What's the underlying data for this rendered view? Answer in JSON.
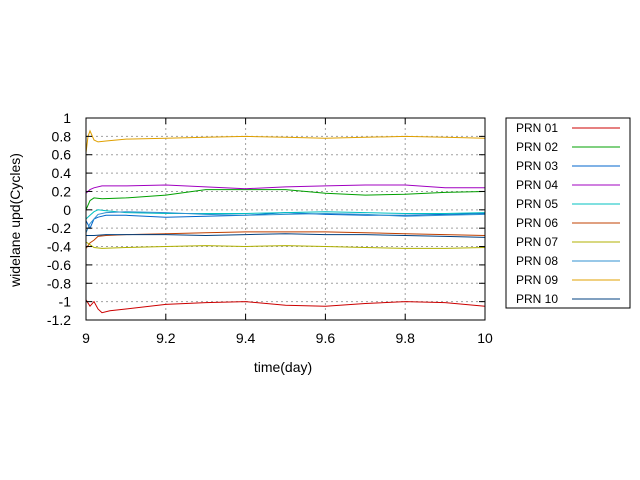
{
  "chart_data": {
    "type": "line",
    "title": "",
    "xlabel": "time(day)",
    "ylabel": "widelane upd(Cycles)",
    "xlim": [
      9,
      10
    ],
    "ylim": [
      -1.2,
      1
    ],
    "xticks": [
      {
        "value": 9,
        "label": "9"
      },
      {
        "value": 9.2,
        "label": "9.2"
      },
      {
        "value": 9.4,
        "label": "9.4"
      },
      {
        "value": 9.6,
        "label": "9.6"
      },
      {
        "value": 9.8,
        "label": "9.8"
      },
      {
        "value": 10,
        "label": "10"
      }
    ],
    "yticks": [
      {
        "value": 1,
        "label": "1"
      },
      {
        "value": 0.8,
        "label": "0.8"
      },
      {
        "value": 0.6,
        "label": "0.6"
      },
      {
        "value": 0.4,
        "label": "0.4"
      },
      {
        "value": 0.2,
        "label": "0.2"
      },
      {
        "value": 0,
        "label": "0"
      },
      {
        "value": -0.2,
        "label": "-0.2"
      },
      {
        "value": -0.4,
        "label": "-0.4"
      },
      {
        "value": -0.6,
        "label": "-0.6"
      },
      {
        "value": -0.8,
        "label": "-0.8"
      },
      {
        "value": -1,
        "label": "-1"
      },
      {
        "value": -1.2,
        "label": "-1.2"
      }
    ],
    "grid": true,
    "legend_position": "outside-right",
    "series": [
      {
        "name": "PRN 01",
        "color": "#cc0000",
        "x": [
          9.0,
          9.01,
          9.02,
          9.03,
          9.04,
          9.06,
          9.1,
          9.2,
          9.3,
          9.4,
          9.5,
          9.6,
          9.7,
          9.8,
          9.9,
          10.0
        ],
        "y": [
          -0.98,
          -1.05,
          -1.0,
          -1.08,
          -1.12,
          -1.1,
          -1.08,
          -1.03,
          -1.01,
          -1.0,
          -1.04,
          -1.05,
          -1.02,
          -1.0,
          -1.01,
          -1.05
        ]
      },
      {
        "name": "PRN 02",
        "color": "#00a000",
        "x": [
          9.0,
          9.01,
          9.02,
          9.04,
          9.1,
          9.2,
          9.3,
          9.4,
          9.5,
          9.6,
          9.7,
          9.8,
          9.9,
          10.0
        ],
        "y": [
          0.0,
          0.1,
          0.13,
          0.12,
          0.13,
          0.16,
          0.22,
          0.22,
          0.22,
          0.18,
          0.16,
          0.17,
          0.19,
          0.2
        ]
      },
      {
        "name": "PRN 03",
        "color": "#0066cc",
        "x": [
          9.0,
          9.01,
          9.02,
          9.03,
          9.05,
          9.1,
          9.2,
          9.3,
          9.4,
          9.5,
          9.6,
          9.7,
          9.8,
          9.9,
          10.0
        ],
        "y": [
          -0.12,
          -0.2,
          -0.1,
          -0.08,
          -0.06,
          -0.06,
          -0.08,
          -0.07,
          -0.06,
          -0.03,
          -0.05,
          -0.06,
          -0.06,
          -0.05,
          -0.04
        ]
      },
      {
        "name": "PRN 04",
        "color": "#a000c0",
        "x": [
          9.0,
          9.01,
          9.02,
          9.04,
          9.1,
          9.2,
          9.3,
          9.4,
          9.5,
          9.6,
          9.7,
          9.8,
          9.9,
          10.0
        ],
        "y": [
          0.18,
          0.22,
          0.24,
          0.26,
          0.26,
          0.27,
          0.25,
          0.23,
          0.25,
          0.26,
          0.27,
          0.27,
          0.24,
          0.24
        ]
      },
      {
        "name": "PRN 05",
        "color": "#00c0c0",
        "x": [
          9.0,
          9.01,
          9.02,
          9.03,
          9.05,
          9.1,
          9.2,
          9.3,
          9.4,
          9.5,
          9.6,
          9.7,
          9.8,
          9.9,
          10.0
        ],
        "y": [
          -0.1,
          -0.06,
          -0.02,
          0.0,
          -0.01,
          -0.03,
          -0.04,
          -0.04,
          -0.04,
          -0.03,
          -0.02,
          -0.03,
          -0.04,
          -0.04,
          -0.03
        ]
      },
      {
        "name": "PRN 06",
        "color": "#c04000",
        "x": [
          9.0,
          9.01,
          9.02,
          9.03,
          9.05,
          9.1,
          9.2,
          9.3,
          9.4,
          9.5,
          9.6,
          9.7,
          9.8,
          9.9,
          10.0
        ],
        "y": [
          -0.42,
          -0.36,
          -0.33,
          -0.29,
          -0.28,
          -0.27,
          -0.26,
          -0.25,
          -0.24,
          -0.24,
          -0.24,
          -0.25,
          -0.26,
          -0.27,
          -0.28
        ]
      },
      {
        "name": "PRN 07",
        "color": "#b0b000",
        "x": [
          9.0,
          9.01,
          9.02,
          9.04,
          9.1,
          9.2,
          9.3,
          9.4,
          9.5,
          9.6,
          9.7,
          9.8,
          9.9,
          10.0
        ],
        "y": [
          -0.35,
          -0.38,
          -0.41,
          -0.42,
          -0.41,
          -0.4,
          -0.39,
          -0.4,
          -0.39,
          -0.4,
          -0.41,
          -0.42,
          -0.42,
          -0.41
        ]
      },
      {
        "name": "PRN 08",
        "color": "#3090d0",
        "x": [
          9.0,
          9.01,
          9.02,
          9.03,
          9.05,
          9.1,
          9.2,
          9.3,
          9.4,
          9.5,
          9.6,
          9.7,
          9.8,
          9.9,
          10.0
        ],
        "y": [
          -0.25,
          -0.15,
          -0.1,
          -0.05,
          -0.03,
          -0.02,
          -0.03,
          -0.05,
          -0.06,
          -0.05,
          -0.04,
          -0.05,
          -0.07,
          -0.06,
          -0.05
        ]
      },
      {
        "name": "PRN 09",
        "color": "#e0a000",
        "x": [
          9.0,
          9.005,
          9.01,
          9.02,
          9.03,
          9.05,
          9.1,
          9.2,
          9.3,
          9.4,
          9.5,
          9.6,
          9.7,
          9.8,
          9.9,
          10.0
        ],
        "y": [
          0.62,
          0.8,
          0.86,
          0.76,
          0.74,
          0.75,
          0.77,
          0.78,
          0.79,
          0.8,
          0.79,
          0.78,
          0.79,
          0.8,
          0.79,
          0.78
        ]
      },
      {
        "name": "PRN 10",
        "color": "#004080",
        "x": [
          9.0,
          9.02,
          9.05,
          9.1,
          9.2,
          9.3,
          9.4,
          9.5,
          9.6,
          9.7,
          9.8,
          9.9,
          10.0
        ],
        "y": [
          -0.28,
          -0.28,
          -0.27,
          -0.27,
          -0.27,
          -0.28,
          -0.27,
          -0.26,
          -0.27,
          -0.27,
          -0.28,
          -0.29,
          -0.3
        ]
      }
    ]
  }
}
